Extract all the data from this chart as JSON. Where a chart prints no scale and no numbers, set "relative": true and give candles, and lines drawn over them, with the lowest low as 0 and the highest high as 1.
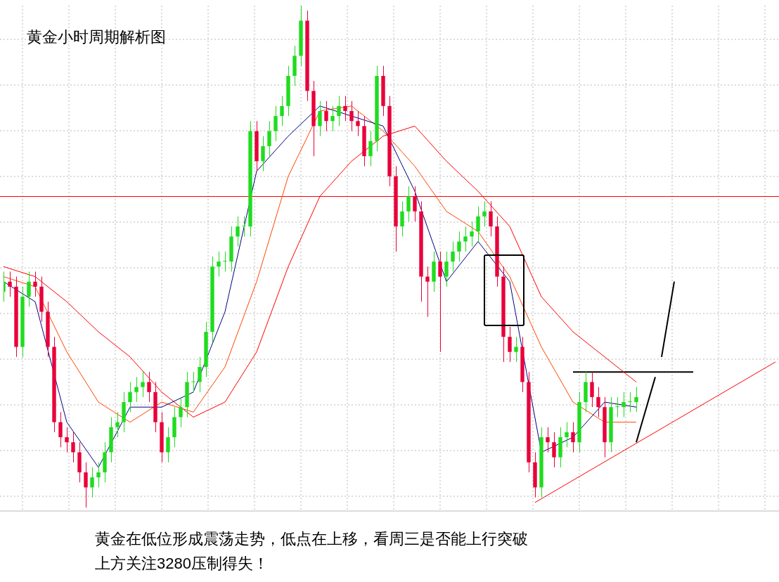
{
  "chart_data": {
    "type": "candlestick",
    "title": "黄金小时周期解析图",
    "annotations": [
      "黄金在低位形成震荡走势，低点在上移，看周三是否能上行突破",
      "上方关注3280压制得失！"
    ],
    "relative": true,
    "grid": true,
    "categories": [
      null,
      null,
      null,
      null,
      null,
      null,
      null,
      null,
      null,
      null,
      null,
      null,
      null,
      null,
      null,
      null,
      null,
      null,
      null,
      null,
      null,
      null,
      null,
      null,
      null,
      null,
      null,
      null,
      null,
      null,
      null,
      null,
      null,
      null,
      null,
      null,
      null,
      null,
      null,
      null,
      null,
      null,
      null,
      null,
      null,
      null,
      null,
      null,
      null,
      null,
      null,
      null,
      null,
      null,
      null,
      null,
      null,
      null,
      null,
      null,
      null,
      null,
      null,
      null,
      null,
      null,
      null,
      null,
      null,
      null,
      null,
      null,
      null,
      null,
      null,
      null,
      null,
      null,
      null,
      null,
      null,
      null,
      null,
      null,
      null,
      null,
      null,
      null,
      null,
      null,
      null,
      null,
      null,
      null,
      null,
      null,
      null,
      null,
      null,
      null,
      null,
      null,
      null,
      null,
      null,
      null,
      null,
      null,
      null,
      null,
      null,
      null,
      null,
      null,
      null,
      null,
      null,
      null,
      null,
      null,
      null,
      null,
      null
    ],
    "ohlc": [
      [
        0.43,
        0.47,
        0.41,
        0.45
      ],
      [
        0.45,
        0.47,
        0.42,
        0.44
      ],
      [
        0.44,
        0.46,
        0.3,
        0.32
      ],
      [
        0.32,
        0.44,
        0.3,
        0.42
      ],
      [
        0.42,
        0.47,
        0.4,
        0.45
      ],
      [
        0.45,
        0.47,
        0.42,
        0.44
      ],
      [
        0.44,
        0.46,
        0.37,
        0.39
      ],
      [
        0.39,
        0.41,
        0.3,
        0.32
      ],
      [
        0.32,
        0.34,
        0.15,
        0.17
      ],
      [
        0.17,
        0.19,
        0.12,
        0.14
      ],
      [
        0.14,
        0.16,
        0.11,
        0.13
      ],
      [
        0.13,
        0.15,
        0.09,
        0.11
      ],
      [
        0.11,
        0.13,
        0.05,
        0.07
      ],
      [
        0.07,
        0.09,
        0.0,
        0.04
      ],
      [
        0.04,
        0.08,
        0.02,
        0.06
      ],
      [
        0.06,
        0.09,
        0.04,
        0.07
      ],
      [
        0.07,
        0.13,
        0.05,
        0.11
      ],
      [
        0.11,
        0.18,
        0.09,
        0.16
      ],
      [
        0.16,
        0.19,
        0.14,
        0.17
      ],
      [
        0.17,
        0.23,
        0.15,
        0.21
      ],
      [
        0.21,
        0.25,
        0.19,
        0.23
      ],
      [
        0.23,
        0.26,
        0.21,
        0.24
      ],
      [
        0.24,
        0.27,
        0.22,
        0.25
      ],
      [
        0.25,
        0.27,
        0.21,
        0.23
      ],
      [
        0.23,
        0.25,
        0.15,
        0.17
      ],
      [
        0.17,
        0.19,
        0.09,
        0.11
      ],
      [
        0.11,
        0.16,
        0.09,
        0.14
      ],
      [
        0.14,
        0.2,
        0.12,
        0.18
      ],
      [
        0.18,
        0.22,
        0.16,
        0.2
      ],
      [
        0.2,
        0.27,
        0.18,
        0.25
      ],
      [
        0.25,
        0.27,
        0.23,
        0.25
      ],
      [
        0.25,
        0.3,
        0.23,
        0.28
      ],
      [
        0.28,
        0.37,
        0.26,
        0.35
      ],
      [
        0.35,
        0.5,
        0.33,
        0.48
      ],
      [
        0.48,
        0.51,
        0.46,
        0.49
      ],
      [
        0.49,
        0.51,
        0.47,
        0.49
      ],
      [
        0.49,
        0.56,
        0.47,
        0.54
      ],
      [
        0.54,
        0.58,
        0.52,
        0.56
      ],
      [
        0.56,
        0.58,
        0.54,
        0.56
      ],
      [
        0.56,
        0.77,
        0.54,
        0.75
      ],
      [
        0.75,
        0.77,
        0.67,
        0.69
      ],
      [
        0.69,
        0.74,
        0.67,
        0.72
      ],
      [
        0.72,
        0.77,
        0.7,
        0.75
      ],
      [
        0.75,
        0.8,
        0.73,
        0.78
      ],
      [
        0.78,
        0.82,
        0.76,
        0.8
      ],
      [
        0.8,
        0.88,
        0.78,
        0.86
      ],
      [
        0.86,
        0.92,
        0.84,
        0.9
      ],
      [
        0.9,
        1.0,
        0.88,
        0.97
      ],
      [
        0.97,
        0.99,
        0.81,
        0.83
      ],
      [
        0.83,
        0.85,
        0.7,
        0.76
      ],
      [
        0.76,
        0.81,
        0.74,
        0.79
      ],
      [
        0.79,
        0.81,
        0.75,
        0.77
      ],
      [
        0.77,
        0.8,
        0.75,
        0.78
      ],
      [
        0.78,
        0.82,
        0.76,
        0.8
      ],
      [
        0.8,
        0.82,
        0.77,
        0.79
      ],
      [
        0.79,
        0.81,
        0.75,
        0.77
      ],
      [
        0.77,
        0.79,
        0.74,
        0.76
      ],
      [
        0.76,
        0.78,
        0.68,
        0.7
      ],
      [
        0.7,
        0.75,
        0.68,
        0.73
      ],
      [
        0.73,
        0.88,
        0.71,
        0.86
      ],
      [
        0.86,
        0.88,
        0.78,
        0.8
      ],
      [
        0.8,
        0.82,
        0.64,
        0.66
      ],
      [
        0.66,
        0.68,
        0.51,
        0.56
      ],
      [
        0.56,
        0.61,
        0.54,
        0.59
      ],
      [
        0.59,
        0.64,
        0.57,
        0.62
      ],
      [
        0.62,
        0.64,
        0.57,
        0.59
      ],
      [
        0.59,
        0.61,
        0.41,
        0.46
      ],
      [
        0.46,
        0.48,
        0.38,
        0.45
      ],
      [
        0.45,
        0.51,
        0.43,
        0.49
      ],
      [
        0.49,
        0.51,
        0.31,
        0.46
      ],
      [
        0.46,
        0.51,
        0.44,
        0.49
      ],
      [
        0.49,
        0.53,
        0.47,
        0.51
      ],
      [
        0.51,
        0.55,
        0.49,
        0.53
      ],
      [
        0.53,
        0.56,
        0.51,
        0.54
      ],
      [
        0.54,
        0.57,
        0.52,
        0.55
      ],
      [
        0.55,
        0.6,
        0.53,
        0.58
      ],
      [
        0.58,
        0.61,
        0.56,
        0.59
      ],
      [
        0.59,
        0.61,
        0.54,
        0.56
      ],
      [
        0.56,
        0.58,
        0.44,
        0.46
      ],
      [
        0.46,
        0.48,
        0.29,
        0.34
      ],
      [
        0.34,
        0.36,
        0.29,
        0.31
      ],
      [
        0.31,
        0.34,
        0.29,
        0.32
      ],
      [
        0.32,
        0.34,
        0.23,
        0.25
      ],
      [
        0.25,
        0.27,
        0.07,
        0.09
      ],
      [
        0.09,
        0.11,
        0.02,
        0.04
      ],
      [
        0.04,
        0.16,
        0.02,
        0.14
      ],
      [
        0.14,
        0.16,
        0.11,
        0.13
      ],
      [
        0.13,
        0.15,
        0.08,
        0.1
      ],
      [
        0.1,
        0.16,
        0.08,
        0.14
      ],
      [
        0.14,
        0.17,
        0.12,
        0.15
      ],
      [
        0.15,
        0.17,
        0.11,
        0.13
      ],
      [
        0.13,
        0.23,
        0.11,
        0.21
      ],
      [
        0.21,
        0.27,
        0.19,
        0.25
      ],
      [
        0.25,
        0.27,
        0.2,
        0.22
      ],
      [
        0.22,
        0.24,
        0.18,
        0.2
      ],
      [
        0.2,
        0.22,
        0.1,
        0.13
      ],
      [
        0.13,
        0.22,
        0.11,
        0.2
      ],
      [
        0.2,
        0.22,
        0.18,
        0.2
      ],
      [
        0.2,
        0.23,
        0.18,
        0.21
      ],
      [
        0.21,
        0.23,
        0.19,
        0.21
      ],
      [
        0.21,
        0.24,
        0.19,
        0.22
      ],
      null,
      null,
      null,
      null,
      null,
      null,
      null,
      null,
      null,
      null,
      null,
      null,
      null,
      null,
      null,
      null,
      null,
      null,
      null,
      null,
      null,
      null
    ],
    "series": [
      {
        "type": "line",
        "color": "#000080",
        "values": [
          0.45,
          null,
          null,
          null,
          null,
          0.41,
          null,
          null,
          null,
          null,
          0.17,
          null,
          null,
          null,
          null,
          0.08,
          null,
          null,
          null,
          null,
          0.2,
          null,
          null,
          null,
          null,
          0.2,
          null,
          null,
          null,
          null,
          0.23,
          null,
          null,
          null,
          null,
          0.39,
          null,
          null,
          null,
          null,
          0.67,
          null,
          null,
          null,
          null,
          0.74,
          null,
          null,
          null,
          null,
          0.8,
          null,
          null,
          null,
          null,
          0.78,
          null,
          null,
          null,
          null,
          0.76,
          null,
          null,
          null,
          null,
          0.63,
          null,
          null,
          null,
          null,
          0.45,
          null,
          null,
          null,
          null,
          0.53,
          null,
          null,
          null,
          null,
          0.45,
          null,
          null,
          null,
          null,
          0.11,
          null,
          null,
          null,
          null,
          0.14,
          null,
          null,
          null,
          null,
          0.21,
          null,
          null,
          null,
          null,
          0.2,
          null,
          null,
          null,
          null,
          null,
          null,
          null,
          null,
          null,
          null,
          null,
          null,
          null,
          null,
          null,
          null,
          null,
          null,
          null,
          null,
          null,
          null
        ]
      },
      {
        "type": "line",
        "color": "#ff4500",
        "values": [
          0.46,
          null,
          null,
          null,
          null,
          0.44,
          null,
          null,
          null,
          null,
          0.31,
          null,
          null,
          null,
          null,
          0.21,
          null,
          null,
          null,
          null,
          0.17,
          null,
          null,
          null,
          null,
          0.21,
          null,
          null,
          null,
          null,
          0.19,
          null,
          null,
          null,
          null,
          0.28,
          null,
          null,
          null,
          null,
          0.45,
          null,
          null,
          null,
          null,
          0.66,
          null,
          null,
          null,
          null,
          0.79,
          null,
          null,
          null,
          null,
          0.8,
          null,
          null,
          null,
          null,
          0.75,
          null,
          null,
          null,
          null,
          0.68,
          null,
          null,
          null,
          null,
          0.59,
          null,
          null,
          null,
          null,
          0.55,
          null,
          null,
          null,
          null,
          0.46,
          null,
          null,
          null,
          null,
          0.32,
          null,
          null,
          null,
          null,
          0.21,
          null,
          null,
          null,
          null,
          0.17,
          null,
          null,
          null,
          null,
          0.17,
          null,
          null,
          null,
          null,
          null,
          null,
          null,
          null,
          null,
          null,
          null,
          null,
          null,
          null,
          null,
          null,
          null,
          null,
          null,
          null,
          null,
          null
        ]
      },
      {
        "type": "line",
        "color": "#ff0000",
        "values": [
          0.48,
          null,
          null,
          null,
          null,
          0.46,
          null,
          null,
          null,
          null,
          0.41,
          null,
          null,
          null,
          null,
          0.35,
          null,
          null,
          null,
          null,
          0.3,
          null,
          null,
          null,
          null,
          0.23,
          null,
          null,
          null,
          null,
          0.18,
          null,
          null,
          null,
          null,
          0.21,
          null,
          null,
          null,
          null,
          0.31,
          null,
          null,
          null,
          null,
          0.48,
          null,
          null,
          null,
          null,
          0.62,
          null,
          null,
          null,
          null,
          0.69,
          null,
          null,
          null,
          null,
          0.74,
          null,
          null,
          null,
          null,
          0.76,
          null,
          null,
          null,
          null,
          0.69,
          null,
          null,
          null,
          null,
          0.63,
          null,
          null,
          null,
          null,
          0.56,
          null,
          null,
          null,
          null,
          0.42,
          null,
          null,
          null,
          null,
          0.35,
          null,
          null,
          null,
          null,
          0.3,
          null,
          null,
          null,
          null,
          0.25,
          null,
          null,
          null,
          null,
          null,
          null,
          null,
          null,
          null,
          null,
          null,
          null,
          null,
          null,
          null,
          null,
          null,
          null,
          null,
          null,
          null,
          null
        ]
      },
      {
        "type": "line",
        "color": "#ff0000",
        "values": [
          null,
          null,
          null,
          null,
          null,
          null,
          null,
          null,
          null,
          null,
          null,
          null,
          null,
          null,
          null,
          null,
          null,
          null,
          null,
          null,
          null,
          null,
          null,
          null,
          null,
          null,
          null,
          null,
          null,
          null,
          null,
          null,
          null,
          null,
          null,
          null,
          null,
          null,
          null,
          null,
          null,
          null,
          null,
          null,
          null,
          null,
          null,
          null,
          null,
          null,
          null,
          null,
          null,
          null,
          null,
          null,
          null,
          null,
          null,
          null,
          null,
          null,
          null,
          null,
          null,
          null,
          null,
          null,
          null,
          null,
          null,
          null,
          null,
          null,
          null,
          null,
          null,
          null,
          null,
          null,
          null,
          null,
          null,
          null,
          0.01,
          null,
          null,
          null,
          null,
          null,
          null,
          null,
          null,
          null,
          null,
          null,
          null,
          null,
          null,
          null,
          null,
          null,
          null,
          null,
          null,
          null,
          null,
          null,
          null,
          null,
          null,
          null,
          null,
          null,
          null,
          null,
          null,
          null,
          null,
          null,
          null,
          null,
          0.29
        ]
      },
      {
        "type": "line",
        "color": "#000000",
        "values": [
          null,
          null,
          null,
          null,
          null,
          null,
          null,
          null,
          null,
          null,
          null,
          null,
          null,
          null,
          null,
          null,
          null,
          null,
          null,
          null,
          null,
          null,
          null,
          null,
          null,
          null,
          null,
          null,
          null,
          null,
          null,
          null,
          null,
          null,
          null,
          null,
          null,
          null,
          null,
          null,
          null,
          null,
          null,
          null,
          null,
          null,
          null,
          null,
          null,
          null,
          null,
          null,
          null,
          null,
          null,
          null,
          null,
          null,
          null,
          null,
          null,
          null,
          null,
          null,
          null,
          null,
          null,
          null,
          null,
          null,
          null,
          null,
          null,
          null,
          null,
          null,
          null,
          null,
          null,
          null,
          null,
          null,
          null,
          null,
          null,
          null,
          null,
          null,
          null,
          null,
          0.27,
          null,
          null,
          null,
          null,
          null,
          null,
          null,
          null,
          null,
          null,
          null,
          null,
          null,
          null,
          null,
          null,
          null,
          null,
          0.27,
          null,
          null,
          null,
          null,
          null,
          null,
          null,
          null,
          null,
          null,
          null,
          null,
          null
        ]
      },
      {
        "type": "line",
        "color": "#000000",
        "values": [
          null,
          null,
          null,
          null,
          null,
          null,
          null,
          null,
          null,
          null,
          null,
          null,
          null,
          null,
          null,
          null,
          null,
          null,
          null,
          null,
          null,
          null,
          null,
          null,
          null,
          null,
          null,
          null,
          null,
          null,
          null,
          null,
          null,
          null,
          null,
          null,
          null,
          null,
          null,
          null,
          null,
          null,
          null,
          null,
          null,
          null,
          null,
          null,
          null,
          null,
          null,
          null,
          null,
          null,
          null,
          null,
          null,
          null,
          null,
          null,
          null,
          null,
          null,
          null,
          null,
          null,
          null,
          null,
          null,
          null,
          null,
          null,
          null,
          null,
          null,
          null,
          null,
          null,
          null,
          null,
          null,
          null,
          null,
          null,
          null,
          null,
          null,
          null,
          null,
          null,
          null,
          null,
          null,
          null,
          null,
          null,
          null,
          null,
          null,
          null,
          0.13,
          null,
          null,
          0.26,
          null,
          null,
          null,
          null,
          null,
          null,
          null,
          null,
          null,
          null,
          null,
          null,
          null,
          null,
          null,
          null,
          null,
          null,
          null
        ]
      },
      {
        "type": "line",
        "color": "#000000",
        "values": [
          null,
          null,
          null,
          null,
          null,
          null,
          null,
          null,
          null,
          null,
          null,
          null,
          null,
          null,
          null,
          null,
          null,
          null,
          null,
          null,
          null,
          null,
          null,
          null,
          null,
          null,
          null,
          null,
          null,
          null,
          null,
          null,
          null,
          null,
          null,
          null,
          null,
          null,
          null,
          null,
          null,
          null,
          null,
          null,
          null,
          null,
          null,
          null,
          null,
          null,
          null,
          null,
          null,
          null,
          null,
          null,
          null,
          null,
          null,
          null,
          null,
          null,
          null,
          null,
          null,
          null,
          null,
          null,
          null,
          null,
          null,
          null,
          null,
          null,
          null,
          null,
          null,
          null,
          null,
          null,
          null,
          null,
          null,
          null,
          null,
          null,
          null,
          null,
          null,
          null,
          null,
          null,
          null,
          null,
          null,
          null,
          null,
          null,
          null,
          null,
          null,
          null,
          null,
          null,
          0.3,
          null,
          0.45,
          null,
          null,
          null,
          null,
          null,
          null,
          null,
          null,
          null,
          null,
          null,
          null,
          null,
          null,
          null,
          null
        ]
      }
    ],
    "ref_lines": [
      {
        "axis": "y",
        "value": 0.62,
        "color": "#ff0000"
      }
    ]
  }
}
